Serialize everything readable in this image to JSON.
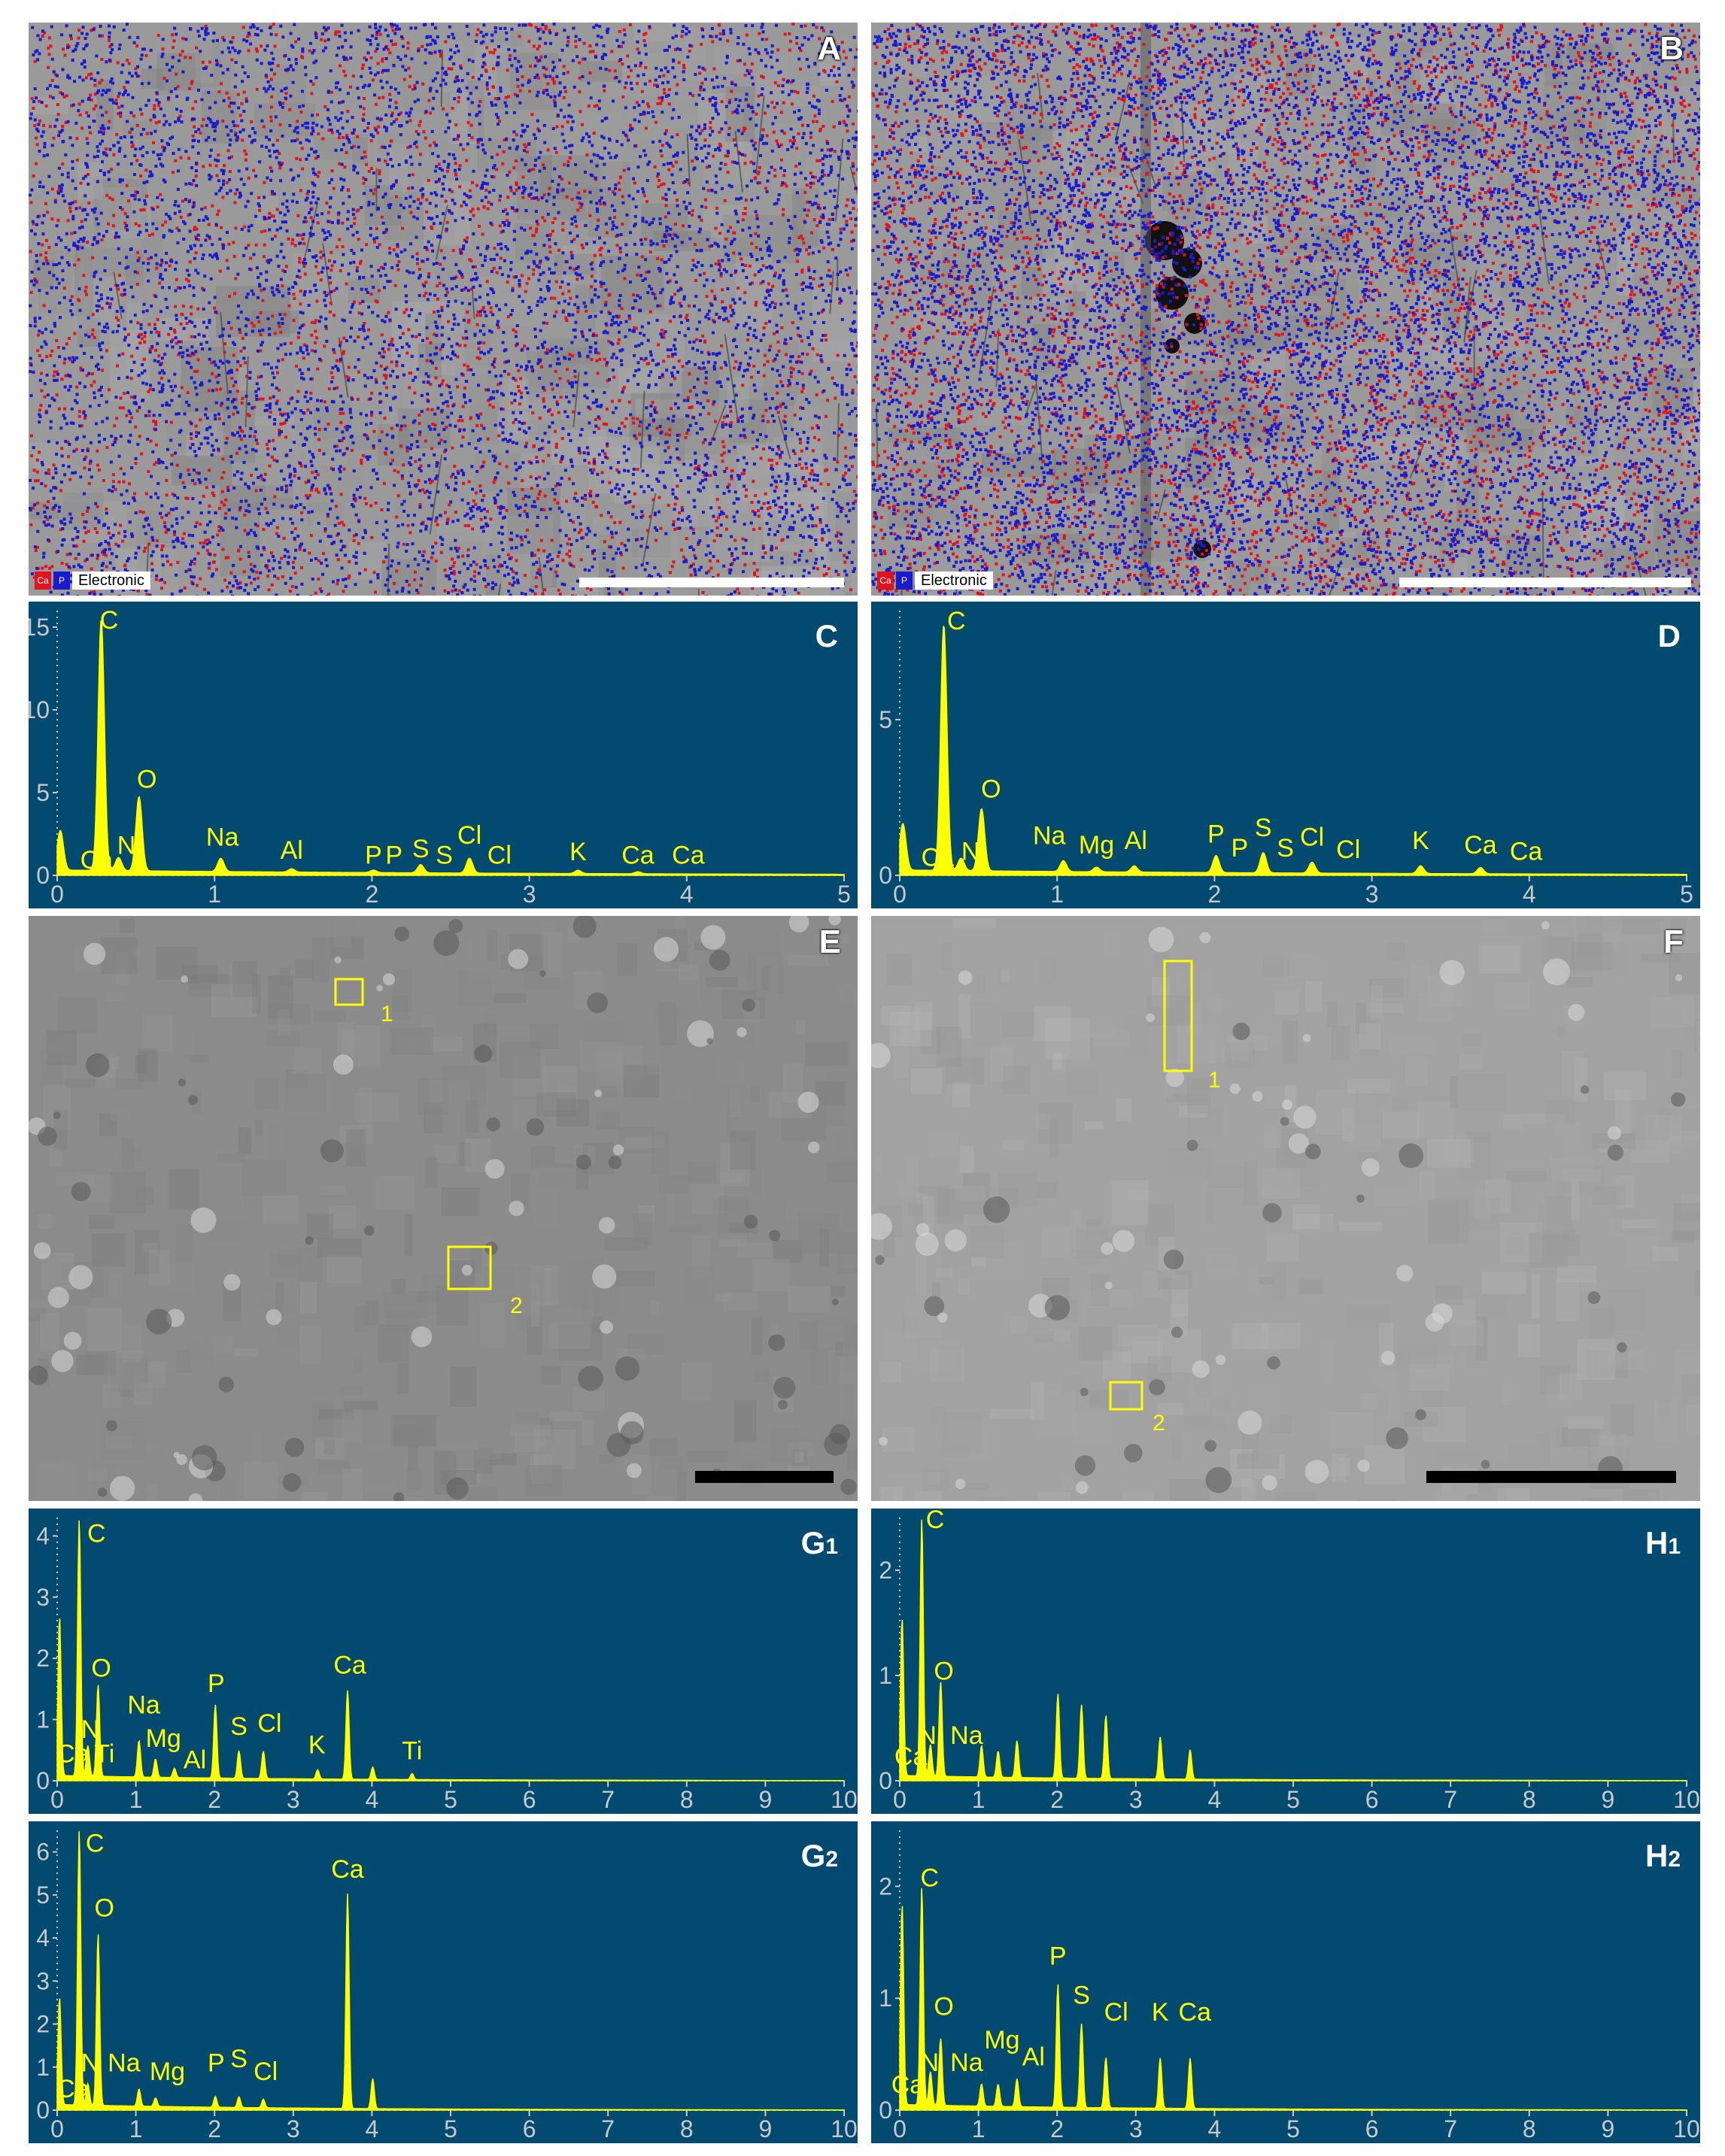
{
  "colors": {
    "spectrum_bg": "#024a70",
    "spectrum_line": "#ffff00",
    "label": "#ffff00",
    "axis_text": "#c9c9c9",
    "ca_map": "#e0141e",
    "p_map": "#1a1ad0",
    "roi_box": "#ffff00"
  },
  "panels": {
    "A": {
      "letter": "A",
      "legend": {
        "ca": "Ca",
        "p": "P",
        "image": "Electronic"
      }
    },
    "B": {
      "letter": "B",
      "legend": {
        "ca": "Ca",
        "p": "P",
        "image": "Electronic"
      }
    },
    "E": {
      "letter": "E",
      "roi": [
        "1",
        "2"
      ]
    },
    "F": {
      "letter": "F",
      "roi": [
        "1",
        "2"
      ]
    }
  },
  "chart_data": [
    {
      "id": "C",
      "panel_label": "C",
      "type": "line",
      "xlim": [
        0,
        5
      ],
      "ylim": [
        0,
        16
      ],
      "xticks": [
        "0",
        "1",
        "2",
        "3",
        "4",
        "5"
      ],
      "yticks": [
        "0",
        "5",
        "10",
        "15"
      ],
      "peaks": [
        {
          "x": 0.02,
          "y": 2.4
        },
        {
          "x": 0.28,
          "y": 15.2
        },
        {
          "x": 0.39,
          "y": 0.8
        },
        {
          "x": 0.52,
          "y": 4.5
        },
        {
          "x": 1.04,
          "y": 0.8
        },
        {
          "x": 1.49,
          "y": 0.2
        },
        {
          "x": 2.01,
          "y": 0.15
        },
        {
          "x": 2.31,
          "y": 0.5
        },
        {
          "x": 2.62,
          "y": 0.9
        },
        {
          "x": 3.31,
          "y": 0.2
        },
        {
          "x": 3.69,
          "y": 0.12
        }
      ],
      "labels": [
        {
          "text": "C",
          "x": 0.33,
          "y": 14.9
        },
        {
          "text": "Ca",
          "x": 0.25,
          "y": 0.4
        },
        {
          "text": "N",
          "x": 0.44,
          "y": 1.3
        },
        {
          "text": "O",
          "x": 0.57,
          "y": 5.3
        },
        {
          "text": "Na",
          "x": 1.05,
          "y": 1.8
        },
        {
          "text": "Al",
          "x": 1.49,
          "y": 1.0
        },
        {
          "text": "P",
          "x": 2.01,
          "y": 0.7
        },
        {
          "text": "P",
          "x": 2.14,
          "y": 0.7
        },
        {
          "text": "S",
          "x": 2.31,
          "y": 1.1
        },
        {
          "text": "S",
          "x": 2.46,
          "y": 0.7
        },
        {
          "text": "Cl",
          "x": 2.62,
          "y": 1.9
        },
        {
          "text": "Cl",
          "x": 2.81,
          "y": 0.7
        },
        {
          "text": "K",
          "x": 3.31,
          "y": 0.9
        },
        {
          "text": "Ca",
          "x": 3.69,
          "y": 0.7
        },
        {
          "text": "Ca",
          "x": 4.01,
          "y": 0.7
        }
      ]
    },
    {
      "id": "D",
      "panel_label": "D",
      "type": "line",
      "xlim": [
        0,
        5
      ],
      "ylim": [
        0,
        8.5
      ],
      "xticks": [
        "0",
        "1",
        "2",
        "3",
        "4",
        "5"
      ],
      "yticks": [
        "0",
        "5"
      ],
      "peaks": [
        {
          "x": 0.02,
          "y": 1.5
        },
        {
          "x": 0.28,
          "y": 7.9
        },
        {
          "x": 0.39,
          "y": 0.4
        },
        {
          "x": 0.52,
          "y": 2.0
        },
        {
          "x": 1.04,
          "y": 0.35
        },
        {
          "x": 1.25,
          "y": 0.15
        },
        {
          "x": 1.49,
          "y": 0.2
        },
        {
          "x": 2.01,
          "y": 0.55
        },
        {
          "x": 2.31,
          "y": 0.65
        },
        {
          "x": 2.62,
          "y": 0.35
        },
        {
          "x": 3.31,
          "y": 0.25
        },
        {
          "x": 3.69,
          "y": 0.2
        }
      ],
      "labels": [
        {
          "text": "C",
          "x": 0.36,
          "y": 7.9
        },
        {
          "text": "Ca",
          "x": 0.24,
          "y": 0.3
        },
        {
          "text": "N",
          "x": 0.45,
          "y": 0.5
        },
        {
          "text": "O",
          "x": 0.58,
          "y": 2.5
        },
        {
          "text": "Na",
          "x": 0.95,
          "y": 1.0
        },
        {
          "text": "Mg",
          "x": 1.25,
          "y": 0.7
        },
        {
          "text": "Al",
          "x": 1.5,
          "y": 0.85
        },
        {
          "text": "P",
          "x": 2.01,
          "y": 1.05
        },
        {
          "text": "P",
          "x": 2.16,
          "y": 0.6
        },
        {
          "text": "S",
          "x": 2.31,
          "y": 1.25
        },
        {
          "text": "S",
          "x": 2.45,
          "y": 0.6
        },
        {
          "text": "Cl",
          "x": 2.62,
          "y": 0.95
        },
        {
          "text": "Cl",
          "x": 2.85,
          "y": 0.55
        },
        {
          "text": "K",
          "x": 3.31,
          "y": 0.85
        },
        {
          "text": "Ca",
          "x": 3.69,
          "y": 0.7
        },
        {
          "text": "Ca",
          "x": 3.98,
          "y": 0.5
        }
      ]
    },
    {
      "id": "G1",
      "panel_label": "G",
      "panel_sub": "1",
      "type": "line",
      "xlim": [
        0,
        10
      ],
      "ylim": [
        0,
        4.3
      ],
      "xticks": [
        "0",
        "1",
        "2",
        "3",
        "4",
        "5",
        "6",
        "7",
        "8",
        "9",
        "10"
      ],
      "yticks": [
        "0",
        "1",
        "2",
        "3",
        "4"
      ],
      "peaks": [
        {
          "x": 0.03,
          "y": 2.6
        },
        {
          "x": 0.28,
          "y": 4.2
        },
        {
          "x": 0.39,
          "y": 0.5
        },
        {
          "x": 0.52,
          "y": 1.5
        },
        {
          "x": 1.04,
          "y": 0.6
        },
        {
          "x": 1.25,
          "y": 0.3
        },
        {
          "x": 1.49,
          "y": 0.15
        },
        {
          "x": 2.01,
          "y": 1.2
        },
        {
          "x": 2.31,
          "y": 0.45
        },
        {
          "x": 2.62,
          "y": 0.45
        },
        {
          "x": 3.31,
          "y": 0.15
        },
        {
          "x": 3.69,
          "y": 1.45
        },
        {
          "x": 4.01,
          "y": 0.2
        },
        {
          "x": 4.51,
          "y": 0.1
        }
      ],
      "labels": [
        {
          "text": "C",
          "x": 0.5,
          "y": 3.9
        },
        {
          "text": "Ca",
          "x": 0.2,
          "y": 0.3
        },
        {
          "text": "N",
          "x": 0.42,
          "y": 0.7
        },
        {
          "text": "Ti",
          "x": 0.6,
          "y": 0.3
        },
        {
          "text": "O",
          "x": 0.56,
          "y": 1.7
        },
        {
          "text": "Na",
          "x": 1.1,
          "y": 1.1
        },
        {
          "text": "Mg",
          "x": 1.35,
          "y": 0.55
        },
        {
          "text": "Al",
          "x": 1.75,
          "y": 0.2
        },
        {
          "text": "P",
          "x": 2.02,
          "y": 1.45
        },
        {
          "text": "S",
          "x": 2.31,
          "y": 0.75
        },
        {
          "text": "Cl",
          "x": 2.7,
          "y": 0.8
        },
        {
          "text": "K",
          "x": 3.3,
          "y": 0.45
        },
        {
          "text": "Ca",
          "x": 3.72,
          "y": 1.75
        },
        {
          "text": "Ti",
          "x": 4.51,
          "y": 0.35
        }
      ]
    },
    {
      "id": "H1",
      "panel_label": "H",
      "panel_sub": "1",
      "type": "line",
      "xlim": [
        0,
        10
      ],
      "ylim": [
        0,
        2.5
      ],
      "xticks": [
        "0",
        "1",
        "2",
        "3",
        "4",
        "5",
        "6",
        "7",
        "8",
        "9",
        "10"
      ],
      "yticks": [
        "0",
        "1",
        "2"
      ],
      "peaks": [
        {
          "x": 0.03,
          "y": 1.5
        },
        {
          "x": 0.28,
          "y": 2.45
        },
        {
          "x": 0.39,
          "y": 0.3
        },
        {
          "x": 0.52,
          "y": 0.9
        },
        {
          "x": 1.04,
          "y": 0.3
        },
        {
          "x": 1.25,
          "y": 0.25
        },
        {
          "x": 1.49,
          "y": 0.35
        },
        {
          "x": 2.01,
          "y": 0.8
        },
        {
          "x": 2.31,
          "y": 0.7
        },
        {
          "x": 2.62,
          "y": 0.6
        },
        {
          "x": 3.31,
          "y": 0.4
        },
        {
          "x": 3.69,
          "y": 0.28
        }
      ],
      "labels": [
        {
          "text": "C",
          "x": 0.45,
          "y": 2.4
        },
        {
          "text": "O",
          "x": 0.56,
          "y": 0.96
        },
        {
          "text": "Ca",
          "x": 0.14,
          "y": 0.15
        },
        {
          "text": "N",
          "x": 0.35,
          "y": 0.35
        },
        {
          "text": "Na",
          "x": 0.85,
          "y": 0.35
        }
      ]
    },
    {
      "id": "G2",
      "panel_label": "G",
      "panel_sub": "2",
      "type": "line",
      "xlim": [
        0,
        10
      ],
      "ylim": [
        0,
        6.5
      ],
      "xticks": [
        "0",
        "1",
        "2",
        "3",
        "4",
        "5",
        "6",
        "7",
        "8",
        "9",
        "10"
      ],
      "yticks": [
        "0",
        "1",
        "2",
        "3",
        "4",
        "5",
        "6"
      ],
      "peaks": [
        {
          "x": 0.03,
          "y": 2.5
        },
        {
          "x": 0.28,
          "y": 6.4
        },
        {
          "x": 0.39,
          "y": 0.5
        },
        {
          "x": 0.52,
          "y": 4.0
        },
        {
          "x": 1.04,
          "y": 0.4
        },
        {
          "x": 1.25,
          "y": 0.2
        },
        {
          "x": 2.01,
          "y": 0.25
        },
        {
          "x": 2.31,
          "y": 0.25
        },
        {
          "x": 2.62,
          "y": 0.2
        },
        {
          "x": 3.69,
          "y": 5.0
        },
        {
          "x": 4.01,
          "y": 0.7
        }
      ],
      "labels": [
        {
          "text": "C",
          "x": 0.48,
          "y": 6.0
        },
        {
          "text": "O",
          "x": 0.6,
          "y": 4.5
        },
        {
          "text": "Ca",
          "x": 0.2,
          "y": 0.3
        },
        {
          "text": "N",
          "x": 0.42,
          "y": 0.9
        },
        {
          "text": "Na",
          "x": 0.85,
          "y": 0.9
        },
        {
          "text": "Mg",
          "x": 1.4,
          "y": 0.7
        },
        {
          "text": "P",
          "x": 2.02,
          "y": 0.9
        },
        {
          "text": "S",
          "x": 2.31,
          "y": 1.0
        },
        {
          "text": "Cl",
          "x": 2.65,
          "y": 0.7
        },
        {
          "text": "Ca",
          "x": 3.69,
          "y": 5.4
        }
      ]
    },
    {
      "id": "H2",
      "panel_label": "H",
      "panel_sub": "2",
      "type": "line",
      "xlim": [
        0,
        10
      ],
      "ylim": [
        0,
        2.5
      ],
      "xticks": [
        "0",
        "1",
        "2",
        "3",
        "4",
        "5",
        "6",
        "7",
        "8",
        "9",
        "10"
      ],
      "yticks": [
        "0",
        "1",
        "2"
      ],
      "peaks": [
        {
          "x": 0.03,
          "y": 1.8
        },
        {
          "x": 0.28,
          "y": 1.95
        },
        {
          "x": 0.39,
          "y": 0.3
        },
        {
          "x": 0.52,
          "y": 0.6
        },
        {
          "x": 1.04,
          "y": 0.2
        },
        {
          "x": 1.25,
          "y": 0.2
        },
        {
          "x": 1.49,
          "y": 0.25
        },
        {
          "x": 2.01,
          "y": 1.1
        },
        {
          "x": 2.31,
          "y": 0.75
        },
        {
          "x": 2.62,
          "y": 0.45
        },
        {
          "x": 3.31,
          "y": 0.45
        },
        {
          "x": 3.69,
          "y": 0.45
        }
      ],
      "labels": [
        {
          "text": "C",
          "x": 0.38,
          "y": 2.0
        },
        {
          "text": "O",
          "x": 0.56,
          "y": 0.85
        },
        {
          "text": "Ca",
          "x": 0.1,
          "y": 0.15
        },
        {
          "text": "N",
          "x": 0.38,
          "y": 0.35
        },
        {
          "text": "Na",
          "x": 0.85,
          "y": 0.35
        },
        {
          "text": "Mg",
          "x": 1.3,
          "y": 0.55
        },
        {
          "text": "Al",
          "x": 1.7,
          "y": 0.4
        },
        {
          "text": "P",
          "x": 2.01,
          "y": 1.3
        },
        {
          "text": "S",
          "x": 2.31,
          "y": 0.95
        },
        {
          "text": "Cl",
          "x": 2.75,
          "y": 0.8
        },
        {
          "text": "K",
          "x": 3.31,
          "y": 0.8
        },
        {
          "text": "Ca",
          "x": 3.75,
          "y": 0.8
        }
      ]
    }
  ]
}
